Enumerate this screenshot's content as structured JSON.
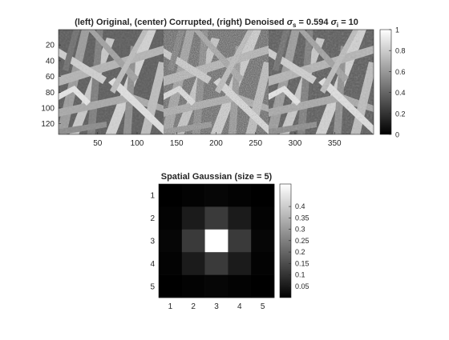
{
  "chart_data": [
    {
      "type": "heatmap",
      "title": {
        "prefix": "(left) Original, (center) Corrupted, (right) Denoised ",
        "sigma": "σ",
        "sigma_s_sub": "s",
        "sigma_s_value": " = 0.594 ",
        "sigma_i_sub": "i",
        "sigma_i_value": " = 10"
      },
      "panels": [
        "Original",
        "Corrupted",
        "Denoised"
      ],
      "xlim": [
        0.5,
        399.5
      ],
      "ylim": [
        0.5,
        133.5
      ],
      "xticks": [
        "50",
        "100",
        "150",
        "200",
        "250",
        "300",
        "350"
      ],
      "xtick_values": [
        50,
        100,
        150,
        200,
        250,
        300,
        350
      ],
      "yticks": [
        "20",
        "40",
        "60",
        "80",
        "100",
        "120"
      ],
      "ytick_values": [
        20,
        40,
        60,
        80,
        100,
        120
      ],
      "colormap": "gray",
      "clim": [
        0,
        1
      ],
      "colorbar_ticks": [
        "0",
        "0.2",
        "0.4",
        "0.6",
        "0.8",
        "1"
      ],
      "colorbar_values": [
        0,
        0.2,
        0.4,
        0.6,
        0.8,
        1
      ]
    },
    {
      "type": "heatmap",
      "title": "Spatial Gaussian (size = 5)",
      "x": [
        1,
        2,
        3,
        4,
        5
      ],
      "y": [
        1,
        2,
        3,
        4,
        5
      ],
      "xticks": [
        "1",
        "2",
        "3",
        "4",
        "5"
      ],
      "yticks": [
        "1",
        "2",
        "3",
        "4",
        "5"
      ],
      "values": [
        [
          0.0005,
          0.005,
          0.0109,
          0.005,
          0.0005
        ],
        [
          0.005,
          0.0522,
          0.1141,
          0.0522,
          0.005
        ],
        [
          0.0109,
          0.1141,
          0.4987,
          0.1141,
          0.0109
        ],
        [
          0.005,
          0.0522,
          0.1141,
          0.0522,
          0.005
        ],
        [
          0.0005,
          0.005,
          0.0109,
          0.005,
          0.0005
        ]
      ],
      "colormap": "gray",
      "clim": [
        0,
        0.4987
      ],
      "colorbar_ticks": [
        "0.05",
        "0.1",
        "0.15",
        "0.2",
        "0.25",
        "0.3",
        "0.35",
        "0.4"
      ],
      "colorbar_values": [
        0.05,
        0.1,
        0.15,
        0.2,
        0.25,
        0.3,
        0.35,
        0.4
      ]
    }
  ]
}
